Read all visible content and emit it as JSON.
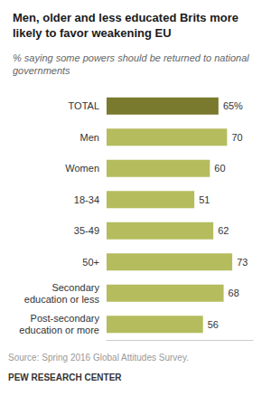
{
  "chart_data": {
    "type": "bar",
    "orientation": "horizontal",
    "title": "Men, older and less educated Brits more\nlikely to favor weakening EU",
    "subtitle": "% saying some powers should be returned to national\ngovernments",
    "categories": [
      "TOTAL",
      "Men",
      "Women",
      "18-34",
      "35-49",
      "50+",
      "Secondary\neducation or less",
      "Post-secondary\neducation or more"
    ],
    "values": [
      65,
      70,
      60,
      51,
      62,
      73,
      68,
      56
    ],
    "value_labels": [
      "65%",
      "70",
      "60",
      "51",
      "62",
      "73",
      "68",
      "56"
    ],
    "data_labels": true,
    "colors": [
      "#7a7a2e",
      "#b5bc5e",
      "#b5bc5e",
      "#b5bc5e",
      "#b5bc5e",
      "#b5bc5e",
      "#b5bc5e",
      "#b5bc5e"
    ],
    "xlim": [
      0,
      85
    ],
    "tick_labels": "y",
    "grid": false,
    "annotations": [
      "Source: Spring 2016 Global Attitudes Survey.",
      "PEW RESEARCH CENTER"
    ]
  }
}
